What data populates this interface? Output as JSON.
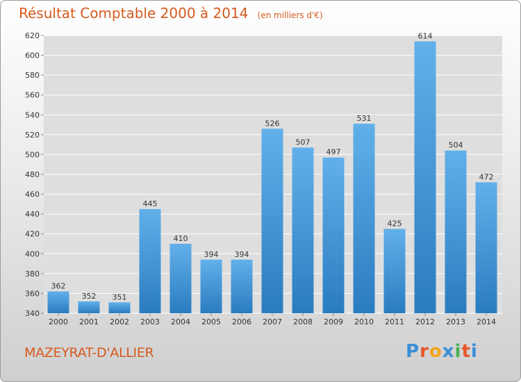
{
  "title": "Résultat Comptable 2000 à 2014",
  "subtitle": "(en milliers d'€)",
  "location": "MAZEYRAT-D'ALLIER",
  "logo": {
    "letters": [
      "P",
      "r",
      "o",
      "x",
      "i",
      "t",
      "i"
    ],
    "colors": [
      "#3a8fd6",
      "#e8562a",
      "#f2a51a",
      "#3a8fd6",
      "#4caf50",
      "#e8562a",
      "#3a8fd6"
    ]
  },
  "colors": {
    "bar_top": "#62b0ea",
    "bar_bottom": "#2a7cc0",
    "grid": "#ffffff",
    "title": "#d65a1e"
  },
  "chart_data": {
    "type": "bar",
    "categories": [
      "2000",
      "2001",
      "2002",
      "2003",
      "2004",
      "2005",
      "2006",
      "2007",
      "2008",
      "2009",
      "2010",
      "2011",
      "2012",
      "2013",
      "2014"
    ],
    "values": [
      362,
      352,
      351,
      445,
      410,
      394,
      394,
      526,
      507,
      497,
      531,
      425,
      614,
      504,
      472
    ],
    "title": "Résultat Comptable 2000 à 2014",
    "xlabel": "",
    "ylabel": "",
    "ylim": [
      340,
      620
    ],
    "yticks": [
      340,
      360,
      380,
      400,
      420,
      440,
      460,
      480,
      500,
      520,
      540,
      560,
      580,
      600,
      620
    ],
    "grid": true,
    "legend": "none"
  }
}
